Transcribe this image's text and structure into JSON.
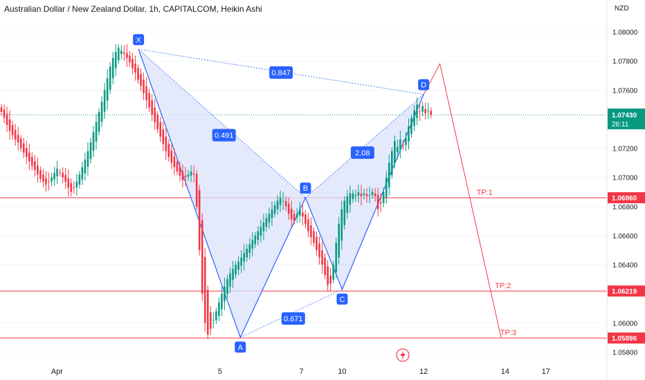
{
  "header": {
    "title": "Australian Dollar / New Zealand Dollar, 1h, CAPITALCOM, Heikin Ashi",
    "currency": "NZD"
  },
  "colors": {
    "up": "#089981",
    "down": "#f23645",
    "pattern_line": "#2962ff",
    "pattern_fill": "#dbe3fb",
    "target_line": "#f23645",
    "price_line": "#089981"
  },
  "chart_data": {
    "type": "candlestick",
    "ylim": [
      1.0575,
      1.081
    ],
    "y_ticks": [
      "1.08000",
      "1.07800",
      "1.07600",
      "1.07200",
      "1.07000",
      "1.06800",
      "1.06600",
      "1.06400",
      "1.06000",
      "1.05800"
    ],
    "x_ticks": [
      {
        "label": "Apr",
        "x": 0
      },
      {
        "label": "5",
        "x": 4
      },
      {
        "label": "7",
        "x": 6
      },
      {
        "label": "10",
        "x": 7
      },
      {
        "label": "12",
        "x": 9
      },
      {
        "label": "14",
        "x": 11
      },
      {
        "label": "17",
        "x": 12
      }
    ],
    "x_range": [
      -1.4,
      13.5
    ],
    "current_price": {
      "value": "1.07430",
      "countdown": "26:11",
      "price": 1.0743
    },
    "pattern": {
      "points": [
        {
          "label": "X",
          "x": 2.0,
          "y": 1.0788
        },
        {
          "label": "A",
          "x": 4.5,
          "y": 1.059
        },
        {
          "label": "B",
          "x": 6.1,
          "y": 1.0686
        },
        {
          "label": "C",
          "x": 7.0,
          "y": 1.0623
        },
        {
          "label": "D",
          "x": 9.0,
          "y": 1.0757
        }
      ],
      "ratios": [
        {
          "label": "0.847",
          "x": 5.5,
          "y": 1.0772
        },
        {
          "label": "0.491",
          "x": 4.1,
          "y": 1.0729
        },
        {
          "label": "2.08",
          "x": 7.5,
          "y": 1.0717
        },
        {
          "label": "0.671",
          "x": 5.8,
          "y": 1.0603
        }
      ]
    },
    "targets": [
      {
        "label": "TP:1",
        "price_label": "1.06860",
        "y": 1.0686
      },
      {
        "label": "TP:2",
        "price_label": "1.06219",
        "y": 1.06219
      },
      {
        "label": "TP:3",
        "price_label": "1.05896",
        "y": 1.05896
      }
    ],
    "projection": [
      {
        "x": 9.0,
        "y": 1.0757
      },
      {
        "x": 9.4,
        "y": 1.0778
      },
      {
        "x": 10.9,
        "y": 1.059
      }
    ],
    "candles_c": [
      1.0745,
      1.0741,
      1.0736,
      1.0732,
      1.0729,
      1.0726,
      1.0724,
      1.072,
      1.0717,
      1.0714,
      1.0711,
      1.0708,
      1.0705,
      1.0702,
      1.0699,
      1.0697,
      1.0695,
      1.0697,
      1.07,
      1.0703,
      1.0706,
      1.0703,
      1.07,
      1.0697,
      1.0693,
      1.069,
      1.0693,
      1.0697,
      1.0702,
      1.0707,
      1.0712,
      1.0718,
      1.0724,
      1.0731,
      1.0738,
      1.0745,
      1.0752,
      1.076,
      1.0768,
      1.0776,
      1.0782,
      1.0786,
      1.0789,
      1.0787,
      1.0785,
      1.0782,
      1.0779,
      1.0775,
      1.0772,
      1.0767,
      1.0763,
      1.0758,
      1.0753,
      1.0748,
      1.0743,
      1.0738,
      1.0733,
      1.0728,
      1.0723,
      1.0718,
      1.0714,
      1.071,
      1.0707,
      1.0704,
      1.0701,
      1.0698,
      1.07,
      1.0702,
      1.0704,
      1.0702,
      1.068,
      1.065,
      1.062,
      1.06,
      1.0592,
      1.0596,
      1.0602,
      1.0608,
      1.0614,
      1.062,
      1.0625,
      1.063,
      1.0634,
      1.0637,
      1.064,
      1.0642,
      1.0645,
      1.0648,
      1.0651,
      1.0654,
      1.0657,
      1.066,
      1.0663,
      1.0666,
      1.0669,
      1.0672,
      1.0675,
      1.0678,
      1.0681,
      1.0684,
      1.0686,
      1.0684,
      1.068,
      1.0675,
      1.0671,
      1.067,
      1.0675,
      1.0678,
      1.0673,
      1.0668,
      1.0663,
      1.0659,
      1.0655,
      1.065,
      1.0645,
      1.064,
      1.0633,
      1.0626,
      1.0627,
      1.064,
      1.0655,
      1.0668,
      1.0678,
      1.0684,
      1.0687,
      1.0689,
      1.0689,
      1.0688,
      1.069,
      1.0687,
      1.0689,
      1.0687,
      1.0688,
      1.069,
      1.0687,
      1.0678,
      1.0682,
      1.069,
      1.07,
      1.071,
      1.0718,
      1.0725,
      1.0721,
      1.0726,
      1.0722,
      1.0727,
      1.0735,
      1.0741,
      1.0746,
      1.075,
      1.0745,
      1.0749,
      1.0744,
      1.0746,
      1.0743
    ]
  }
}
